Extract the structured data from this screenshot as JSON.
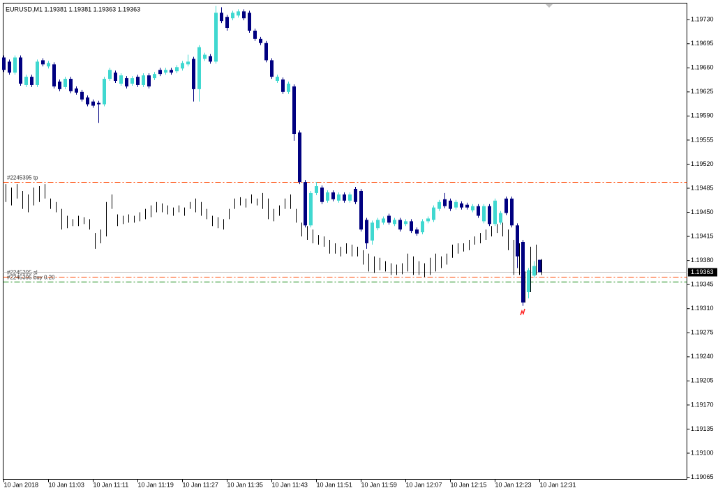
{
  "chart_data": {
    "type": "candlestick",
    "title": "EURUSD,M1  1.19381 1.19381 1.19363 1.19363",
    "bull_color": "#40d8d0",
    "bear_color": "#000080",
    "categories": [
      "10 Jan 2018",
      null,
      null,
      null,
      null,
      null,
      null,
      null,
      "10 Jan 11:03",
      null,
      null,
      null,
      null,
      null,
      null,
      null,
      "10 Jan 11:11",
      null,
      null,
      null,
      null,
      null,
      null,
      null,
      "10 Jan 11:19",
      null,
      null,
      null,
      null,
      null,
      null,
      null,
      "10 Jan 11:27",
      null,
      null,
      null,
      null,
      null,
      null,
      null,
      "10 Jan 11:35",
      null,
      null,
      null,
      null,
      null,
      null,
      null,
      "10 Jan 11:43",
      null,
      null,
      null,
      null,
      null,
      null,
      null,
      "10 Jan 11:51",
      null,
      null,
      null,
      null,
      null,
      null,
      null,
      "10 Jan 11:59",
      null,
      null,
      null,
      null,
      null,
      null,
      null,
      "10 Jan 12:07",
      null,
      null,
      null,
      null,
      null,
      null,
      null,
      "10 Jan 12:15",
      null,
      null,
      null,
      null,
      null,
      null,
      null,
      "10 Jan 12:23",
      null,
      null,
      null,
      null,
      null,
      null,
      null,
      "10 Jan 12:31"
    ],
    "open": [
      1.19675,
      1.19669,
      1.19653,
      1.19675,
      1.19635,
      1.19647,
      1.19635,
      1.19671,
      1.19662,
      1.19665,
      1.1964,
      1.19632,
      1.19644,
      1.1963,
      1.19625,
      1.19617,
      1.19611,
      1.19609,
      1.19607,
      1.19644,
      1.19653,
      1.19637,
      1.19645,
      1.19637,
      1.19647,
      1.19635,
      1.19649,
      1.19645,
      1.19657,
      1.19653,
      1.19657,
      1.19655,
      1.19659,
      1.19665,
      1.19673,
      1.19629,
      1.19673,
      1.19677,
      1.19669,
      1.1974,
      1.19734,
      1.19732,
      1.19736,
      1.19742,
      1.1974,
      1.19714,
      1.19702,
      1.19696,
      1.19671,
      1.19641,
      1.19643,
      1.19625,
      1.19633,
      1.19566,
      1.19494,
      1.19431,
      1.19478,
      1.19486,
      1.19467,
      1.19479,
      1.19467,
      1.19476,
      1.19467,
      1.19484,
      1.19481,
      1.19439,
      1.19409,
      1.19427,
      1.19435,
      1.19445,
      1.19433,
      1.19439,
      1.19433,
      1.19437,
      1.19425,
      1.19421,
      1.19437,
      1.19439,
      1.19455,
      1.19469,
      1.19467,
      1.19457,
      1.19463,
      1.19461,
      1.19453,
      1.19459,
      1.19437,
      1.19459,
      1.19433,
      1.19435,
      1.1947,
      1.1947,
      1.19431,
      1.19407,
      1.19334,
      1.19358,
      1.19381
    ],
    "high": [
      1.19678,
      1.19672,
      1.19678,
      1.19678,
      1.1965,
      1.1965,
      1.19672,
      1.19674,
      1.1967,
      1.19668,
      1.19643,
      1.19647,
      1.19647,
      1.19633,
      1.19628,
      1.1962,
      1.19614,
      1.19612,
      1.19647,
      1.1966,
      1.19656,
      1.19652,
      1.19648,
      1.19648,
      1.1965,
      1.19652,
      1.19652,
      1.19654,
      1.1966,
      1.1966,
      1.1966,
      1.19664,
      1.1967,
      1.19679,
      1.19676,
      1.19693,
      1.19682,
      1.1968,
      1.1975,
      1.19748,
      1.19737,
      1.19743,
      1.19745,
      1.19745,
      1.19743,
      1.19717,
      1.19705,
      1.19699,
      1.19674,
      1.1965,
      1.19646,
      1.1964,
      1.19636,
      1.19569,
      1.19497,
      1.19481,
      1.19494,
      1.19489,
      1.19482,
      1.19482,
      1.19479,
      1.19479,
      1.19479,
      1.19487,
      1.19484,
      1.19442,
      1.19438,
      1.19442,
      1.19444,
      1.19448,
      1.19442,
      1.19442,
      1.1944,
      1.1944,
      1.19428,
      1.1944,
      1.19444,
      1.1946,
      1.19468,
      1.19478,
      1.1947,
      1.19468,
      1.19466,
      1.19464,
      1.19462,
      1.19462,
      1.19462,
      1.19462,
      1.1947,
      1.19452,
      1.19473,
      1.19473,
      1.19434,
      1.1941,
      1.19369,
      1.19379,
      1.19381
    ],
    "low": [
      1.19654,
      1.1965,
      1.1965,
      1.19634,
      1.19632,
      1.19632,
      1.19632,
      1.19662,
      1.19659,
      1.1963,
      1.19626,
      1.19629,
      1.19623,
      1.19621,
      1.19611,
      1.19604,
      1.19602,
      1.1958,
      1.19604,
      1.19641,
      1.19638,
      1.19634,
      1.1963,
      1.19634,
      1.19632,
      1.19632,
      1.1963,
      1.19642,
      1.19648,
      1.1965,
      1.1965,
      1.19652,
      1.19656,
      1.19662,
      1.19611,
      1.19611,
      1.1967,
      1.19666,
      1.19666,
      1.19725,
      1.19714,
      1.19729,
      1.19733,
      1.19729,
      1.19711,
      1.19699,
      1.19693,
      1.19668,
      1.19644,
      1.19638,
      1.19622,
      1.19622,
      1.19554,
      1.19491,
      1.19428,
      1.19428,
      1.19475,
      1.19462,
      1.19464,
      1.19466,
      1.19464,
      1.19464,
      1.19464,
      1.19462,
      1.19422,
      1.19397,
      1.19403,
      1.19424,
      1.19432,
      1.19432,
      1.1943,
      1.19422,
      1.1943,
      1.1942,
      1.19416,
      1.19418,
      1.19434,
      1.19436,
      1.19452,
      1.19456,
      1.19452,
      1.19454,
      1.19454,
      1.19454,
      1.1945,
      1.19442,
      1.19434,
      1.1943,
      1.1943,
      1.19432,
      1.19446,
      1.19428,
      1.19369,
      1.19314,
      1.19325,
      1.19355,
      1.19363
    ],
    "close": [
      1.19657,
      1.19653,
      1.19675,
      1.19637,
      1.19647,
      1.19635,
      1.19669,
      1.19665,
      1.19667,
      1.19633,
      1.19629,
      1.19644,
      1.19626,
      1.19624,
      1.19614,
      1.19607,
      1.19605,
      1.19607,
      1.19644,
      1.19657,
      1.19641,
      1.19649,
      1.19633,
      1.19645,
      1.19635,
      1.19649,
      1.19633,
      1.19651,
      1.19651,
      1.19657,
      1.19653,
      1.19661,
      1.19667,
      1.19669,
      1.19629,
      1.1969,
      1.19679,
      1.19669,
      1.1974,
      1.19728,
      1.19718,
      1.1974,
      1.19742,
      1.19732,
      1.19714,
      1.19702,
      1.19696,
      1.19671,
      1.19647,
      1.19647,
      1.19625,
      1.19637,
      1.19564,
      1.19494,
      1.19431,
      1.19478,
      1.19488,
      1.19465,
      1.19479,
      1.19469,
      1.19476,
      1.19467,
      1.19476,
      1.19465,
      1.19425,
      1.19405,
      1.19435,
      1.19439,
      1.19441,
      1.19435,
      1.19439,
      1.19425,
      1.19437,
      1.19423,
      1.19419,
      1.19437,
      1.19441,
      1.19457,
      1.19465,
      1.19459,
      1.19455,
      1.19465,
      1.19457,
      1.19457,
      1.19459,
      1.19445,
      1.19459,
      1.19433,
      1.19467,
      1.19449,
      1.19449,
      1.19431,
      1.19386,
      1.19319,
      1.19366,
      1.19372,
      1.19363
    ],
    "overlay": {
      "color": "#000000",
      "high": [
        1.19491,
        1.19486,
        1.19491,
        1.19481,
        1.19476,
        1.19486,
        1.19488,
        1.19491,
        1.1947,
        1.19465,
        1.19455,
        1.19445,
        1.1944,
        1.19445,
        1.19443,
        1.1944,
        1.1942,
        1.19425,
        1.19465,
        1.19476,
        1.19447,
        1.19445,
        1.19447,
        1.19445,
        1.1945,
        1.19455,
        1.1946,
        1.19465,
        1.19463,
        1.1946,
        1.19457,
        1.1946,
        1.19457,
        1.19465,
        1.1947,
        1.19465,
        1.19455,
        1.19445,
        1.19443,
        1.1944,
        1.19455,
        1.1947,
        1.19472,
        1.1947,
        1.19476,
        1.1947,
        1.19478,
        1.1947,
        1.19455,
        1.1946,
        1.1947,
        1.19476,
        1.19455,
        1.19435,
        1.1943,
        1.19425,
        1.19417,
        1.19415,
        1.1941,
        1.19405,
        1.194,
        1.19405,
        1.19403,
        1.194,
        1.19395,
        1.1939,
        1.19386,
        1.19384,
        1.19379,
        1.19376,
        1.19374,
        1.19376,
        1.1939,
        1.19386,
        1.19379,
        1.19376,
        1.19384,
        1.1939,
        1.19386,
        1.1939,
        1.19403,
        1.19405,
        1.19405,
        1.1941,
        1.19415,
        1.1942,
        1.19425,
        1.1943,
        1.19433,
        1.19435,
        1.19425,
        1.1941,
        1.19405,
        1.19364,
        1.194,
        1.19403,
        1.19382
      ],
      "low": [
        1.19465,
        1.1946,
        1.1947,
        1.19455,
        1.1945,
        1.1946,
        1.19465,
        1.1947,
        1.19455,
        1.1945,
        1.19425,
        1.19427,
        1.1943,
        1.1943,
        1.19433,
        1.19425,
        1.19397,
        1.19405,
        1.19415,
        1.19455,
        1.1943,
        1.19433,
        1.19435,
        1.19435,
        1.19437,
        1.1944,
        1.19443,
        1.1945,
        1.1945,
        1.19447,
        1.19445,
        1.1945,
        1.19445,
        1.19455,
        1.1945,
        1.19445,
        1.1944,
        1.1943,
        1.19427,
        1.19425,
        1.1944,
        1.19455,
        1.1946,
        1.19457,
        1.19463,
        1.1946,
        1.19455,
        1.1944,
        1.19437,
        1.19445,
        1.19455,
        1.19455,
        1.19435,
        1.19415,
        1.1941,
        1.19405,
        1.19403,
        1.194,
        1.1939,
        1.1939,
        1.19386,
        1.1939,
        1.19386,
        1.19386,
        1.19374,
        1.19364,
        1.19362,
        1.19366,
        1.19364,
        1.19359,
        1.19359,
        1.1936,
        1.19364,
        1.19359,
        1.19359,
        1.19356,
        1.19359,
        1.19364,
        1.19369,
        1.19374,
        1.19384,
        1.1939,
        1.19393,
        1.19395,
        1.19403,
        1.19405,
        1.1941,
        1.19415,
        1.1942,
        1.19415,
        1.19395,
        1.19359,
        1.19359,
        1.19319,
        1.19334,
        1.19359,
        1.19359
      ]
    },
    "ylim": [
      1.19062,
      1.19754
    ],
    "yticks": [
      {
        "value": 1.1973,
        "label": "1.19730"
      },
      {
        "value": 1.19695,
        "label": "1.19695"
      },
      {
        "value": 1.1966,
        "label": "1.19660"
      },
      {
        "value": 1.19625,
        "label": "1.19625"
      },
      {
        "value": 1.1959,
        "label": "1.19590"
      },
      {
        "value": 1.19555,
        "label": "1.19555"
      },
      {
        "value": 1.1952,
        "label": "1.19520"
      },
      {
        "value": 1.19485,
        "label": "1.19485"
      },
      {
        "value": 1.1945,
        "label": "1.19450"
      },
      {
        "value": 1.19415,
        "label": "1.19415"
      },
      {
        "value": 1.1938,
        "label": "1.19380"
      },
      {
        "value": 1.19345,
        "label": "1.19345"
      },
      {
        "value": 1.1931,
        "label": "1.19310"
      },
      {
        "value": 1.19275,
        "label": "1.19275"
      },
      {
        "value": 1.1924,
        "label": "1.19240"
      },
      {
        "value": 1.19205,
        "label": "1.19205"
      },
      {
        "value": 1.1917,
        "label": "1.19170"
      },
      {
        "value": 1.19135,
        "label": "1.19135"
      },
      {
        "value": 1.191,
        "label": "1.19100"
      },
      {
        "value": 1.19065,
        "label": "1.19065"
      }
    ],
    "levels": [
      {
        "label": "#2245395 tp",
        "value": 1.19494,
        "color": "#ff4500"
      },
      {
        "label": "#2245395 sl",
        "value": 1.19356,
        "color": "#ff4500"
      },
      {
        "label": "#2245395 buy 0.20",
        "value": 1.19349,
        "color": "#008000"
      }
    ],
    "bid": 1.19363,
    "bid_color": "#c0c0c0"
  }
}
